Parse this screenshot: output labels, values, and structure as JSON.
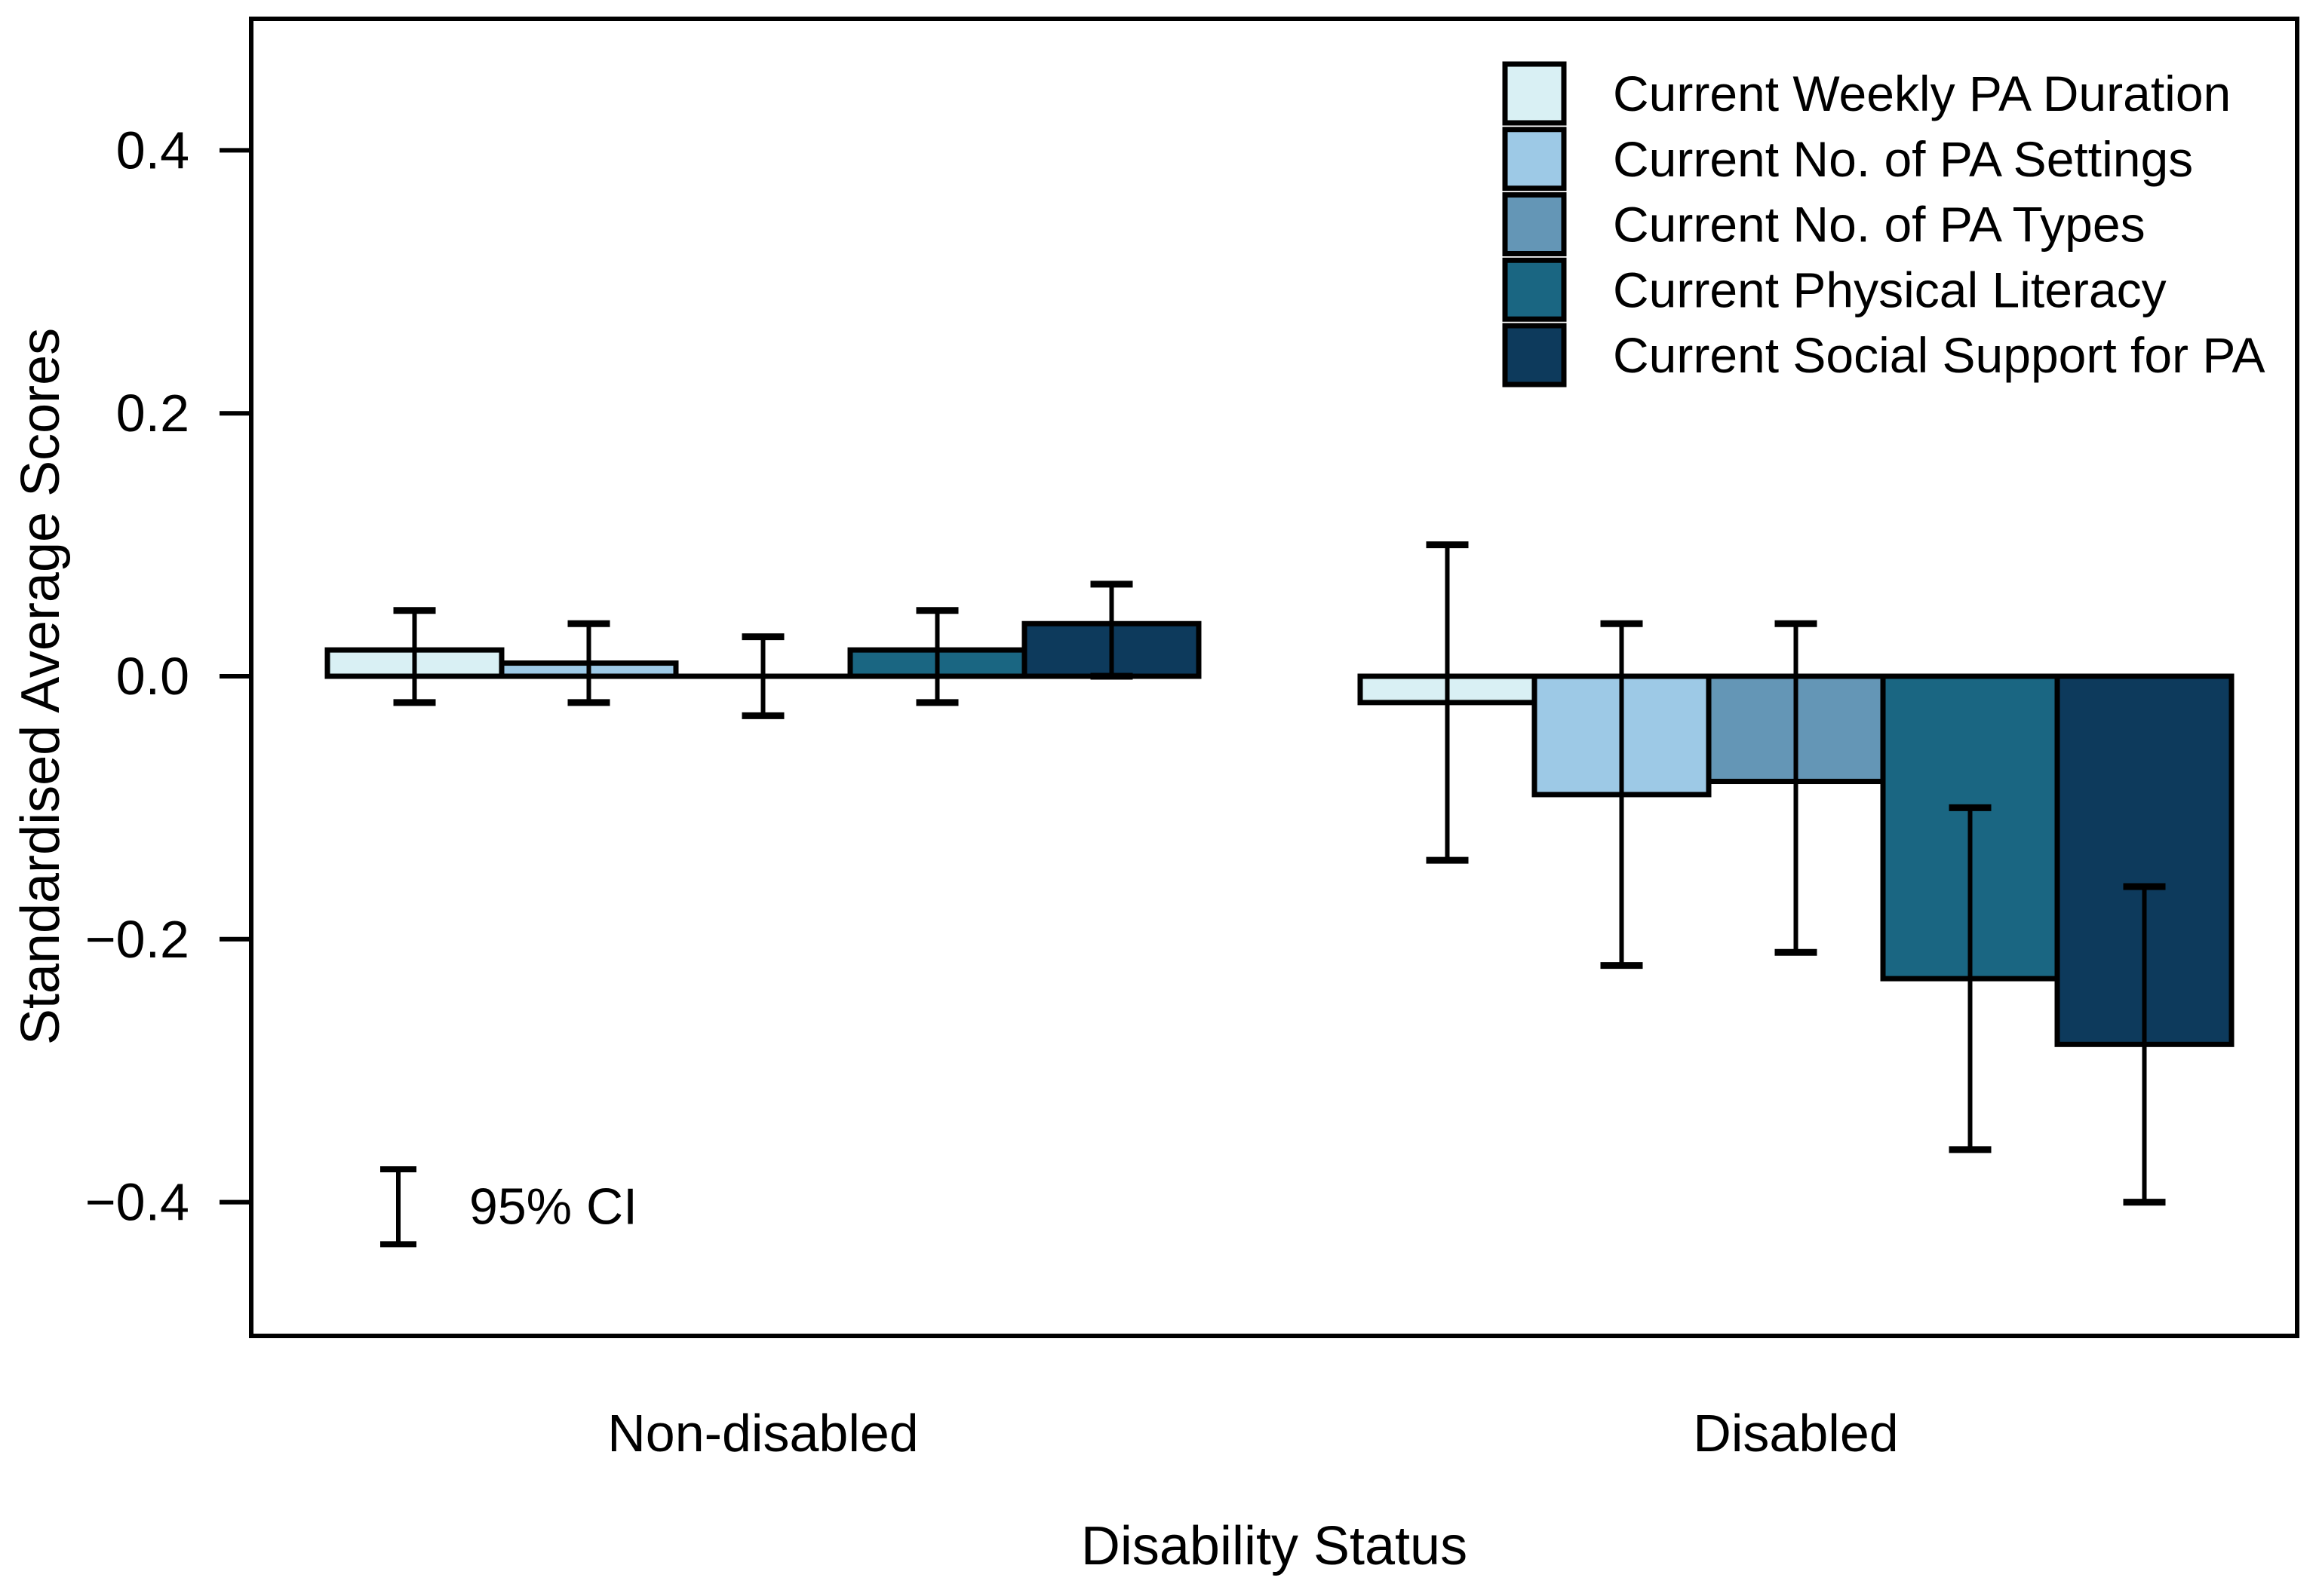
{
  "chart_data": {
    "type": "bar",
    "title": "",
    "xlabel": "Disability Status",
    "ylabel": "Standardised Average Scores",
    "ylim": [
      -0.5,
      0.5
    ],
    "yticks": [
      0.4,
      0.2,
      0.0,
      -0.2,
      -0.4
    ],
    "grid": false,
    "error_bars": true,
    "legend_position": "top-right",
    "annotation_label": "95% CI",
    "categories": [
      "Non-disabled",
      "Disabled"
    ],
    "axis_color": "#000000",
    "bar_border_color": "#000000",
    "series": [
      {
        "name": "Current Weekly PA Duration",
        "color": "#D9F0F4",
        "values": [
          0.02,
          -0.02
        ],
        "ci_low": [
          -0.02,
          -0.14
        ],
        "ci_high": [
          0.05,
          0.1
        ]
      },
      {
        "name": "Current No. of PA Settings",
        "color": "#9DC9E6",
        "values": [
          0.01,
          -0.09
        ],
        "ci_low": [
          -0.02,
          -0.22
        ],
        "ci_high": [
          0.04,
          0.04
        ]
      },
      {
        "name": "Current No. of PA Types",
        "color": "#6496B6",
        "values": [
          0.0,
          -0.08
        ],
        "ci_low": [
          -0.03,
          -0.21
        ],
        "ci_high": [
          0.03,
          0.04
        ]
      },
      {
        "name": "Current Physical Literacy",
        "color": "#1A6682",
        "values": [
          0.02,
          -0.23
        ],
        "ci_low": [
          -0.02,
          -0.36
        ],
        "ci_high": [
          0.05,
          -0.1
        ]
      },
      {
        "name": "Current Social Support for PA",
        "color": "#0D3A5C",
        "values": [
          0.04,
          -0.28
        ],
        "ci_low": [
          0.0,
          -0.4
        ],
        "ci_high": [
          0.07,
          -0.16
        ]
      }
    ]
  }
}
